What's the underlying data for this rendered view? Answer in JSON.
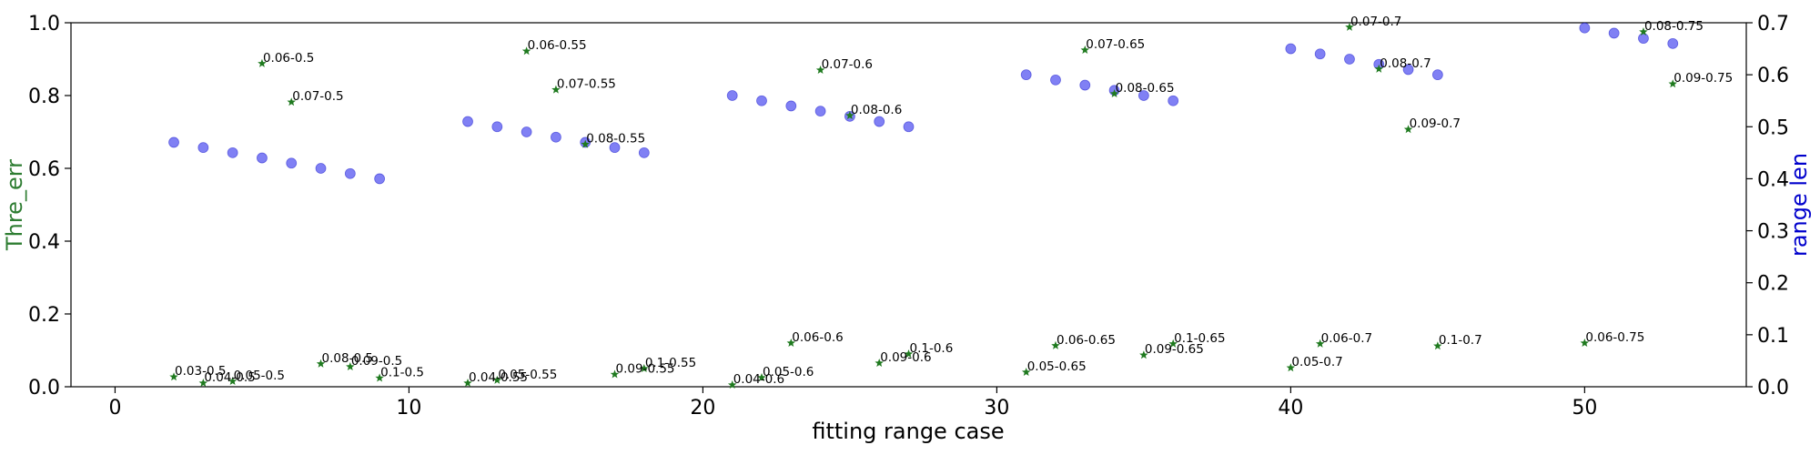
{
  "chart_data": {
    "type": "scatter",
    "title": "",
    "xlabel": "fitting range case",
    "ylabel_left": "Thre_err",
    "ylabel_right": "range len",
    "xlim": [
      -1.5,
      55.5
    ],
    "ylim_left": [
      0,
      1.0
    ],
    "ylim_right": [
      0,
      0.7
    ],
    "x_ticks": [
      0,
      10,
      20,
      30,
      40,
      50
    ],
    "y_left_ticks": [
      0.0,
      0.2,
      0.4,
      0.6,
      0.8,
      1.0
    ],
    "y_right_ticks": [
      0.0,
      0.1,
      0.2,
      0.3,
      0.4,
      0.5,
      0.6,
      0.7
    ],
    "grid": false,
    "colors": {
      "thre_err": "#1f7a1f",
      "range_len": "#4a4af0",
      "left_label": "#2e7d32",
      "right_label": "#0000cc"
    },
    "series": [
      {
        "name": "Thre_err",
        "axis": "left",
        "marker": "star",
        "points": [
          {
            "x": 2,
            "y": 0.027,
            "label": "0.03-0.5"
          },
          {
            "x": 3,
            "y": 0.01,
            "label": "0.04-0.5"
          },
          {
            "x": 4,
            "y": 0.015,
            "label": "0.05-0.5"
          },
          {
            "x": 5,
            "y": 0.888,
            "label": "0.06-0.5"
          },
          {
            "x": 6,
            "y": 0.782,
            "label": "0.07-0.5"
          },
          {
            "x": 7,
            "y": 0.063,
            "label": "0.08-0.5"
          },
          {
            "x": 8,
            "y": 0.055,
            "label": "0.09-0.5"
          },
          {
            "x": 9,
            "y": 0.024,
            "label": "0.1-0.5"
          },
          {
            "x": 12,
            "y": 0.01,
            "label": "0.04-0.55"
          },
          {
            "x": 13,
            "y": 0.018,
            "label": "0.05-0.55"
          },
          {
            "x": 14,
            "y": 0.922,
            "label": "0.06-0.55"
          },
          {
            "x": 15,
            "y": 0.816,
            "label": "0.07-0.55"
          },
          {
            "x": 16,
            "y": 0.666,
            "label": "0.08-0.55"
          },
          {
            "x": 17,
            "y": 0.034,
            "label": "0.09-0.55"
          },
          {
            "x": 18,
            "y": 0.05,
            "label": "0.1-0.55"
          },
          {
            "x": 21,
            "y": 0.005,
            "label": "0.04-0.6"
          },
          {
            "x": 22,
            "y": 0.025,
            "label": "0.05-0.6"
          },
          {
            "x": 23,
            "y": 0.12,
            "label": "0.06-0.6"
          },
          {
            "x": 24,
            "y": 0.87,
            "label": "0.07-0.6"
          },
          {
            "x": 25,
            "y": 0.745,
            "label": "0.08-0.6"
          },
          {
            "x": 26,
            "y": 0.065,
            "label": "0.09-0.6"
          },
          {
            "x": 27,
            "y": 0.09,
            "label": "0.1-0.6"
          },
          {
            "x": 31,
            "y": 0.04,
            "label": "0.05-0.65"
          },
          {
            "x": 32,
            "y": 0.113,
            "label": "0.06-0.65"
          },
          {
            "x": 33,
            "y": 0.925,
            "label": "0.07-0.65"
          },
          {
            "x": 34,
            "y": 0.805,
            "label": "0.08-0.65"
          },
          {
            "x": 35,
            "y": 0.087,
            "label": "0.09-0.65"
          },
          {
            "x": 36,
            "y": 0.118,
            "label": "0.1-0.65"
          },
          {
            "x": 40,
            "y": 0.052,
            "label": "0.05-0.7"
          },
          {
            "x": 41,
            "y": 0.118,
            "label": "0.06-0.7"
          },
          {
            "x": 42,
            "y": 0.988,
            "label": "0.07-0.7"
          },
          {
            "x": 43,
            "y": 0.873,
            "label": "0.08-0.7"
          },
          {
            "x": 44,
            "y": 0.707,
            "label": "0.09-0.7"
          },
          {
            "x": 45,
            "y": 0.112,
            "label": "0.1-0.7"
          },
          {
            "x": 50,
            "y": 0.12,
            "label": "0.06-0.75"
          },
          {
            "x": 52,
            "y": 0.975,
            "label": "0.08-0.75"
          },
          {
            "x": 53,
            "y": 0.832,
            "label": "0.09-0.75"
          }
        ]
      },
      {
        "name": "range len",
        "axis": "right",
        "marker": "circle",
        "points": [
          {
            "x": 2,
            "y": 0.47
          },
          {
            "x": 3,
            "y": 0.46
          },
          {
            "x": 4,
            "y": 0.45
          },
          {
            "x": 5,
            "y": 0.44
          },
          {
            "x": 6,
            "y": 0.43
          },
          {
            "x": 7,
            "y": 0.42
          },
          {
            "x": 8,
            "y": 0.41
          },
          {
            "x": 9,
            "y": 0.4
          },
          {
            "x": 12,
            "y": 0.51
          },
          {
            "x": 13,
            "y": 0.5
          },
          {
            "x": 14,
            "y": 0.49
          },
          {
            "x": 15,
            "y": 0.48
          },
          {
            "x": 16,
            "y": 0.47
          },
          {
            "x": 17,
            "y": 0.46
          },
          {
            "x": 18,
            "y": 0.45
          },
          {
            "x": 21,
            "y": 0.56
          },
          {
            "x": 22,
            "y": 0.55
          },
          {
            "x": 23,
            "y": 0.54
          },
          {
            "x": 24,
            "y": 0.53
          },
          {
            "x": 25,
            "y": 0.52
          },
          {
            "x": 26,
            "y": 0.51
          },
          {
            "x": 27,
            "y": 0.5
          },
          {
            "x": 31,
            "y": 0.6
          },
          {
            "x": 32,
            "y": 0.59
          },
          {
            "x": 33,
            "y": 0.58
          },
          {
            "x": 34,
            "y": 0.57
          },
          {
            "x": 35,
            "y": 0.56
          },
          {
            "x": 36,
            "y": 0.55
          },
          {
            "x": 40,
            "y": 0.65
          },
          {
            "x": 41,
            "y": 0.64
          },
          {
            "x": 42,
            "y": 0.63
          },
          {
            "x": 43,
            "y": 0.62
          },
          {
            "x": 44,
            "y": 0.61
          },
          {
            "x": 45,
            "y": 0.6
          },
          {
            "x": 50,
            "y": 0.69
          },
          {
            "x": 51,
            "y": 0.68
          },
          {
            "x": 52,
            "y": 0.67
          },
          {
            "x": 53,
            "y": 0.66
          }
        ]
      }
    ]
  }
}
